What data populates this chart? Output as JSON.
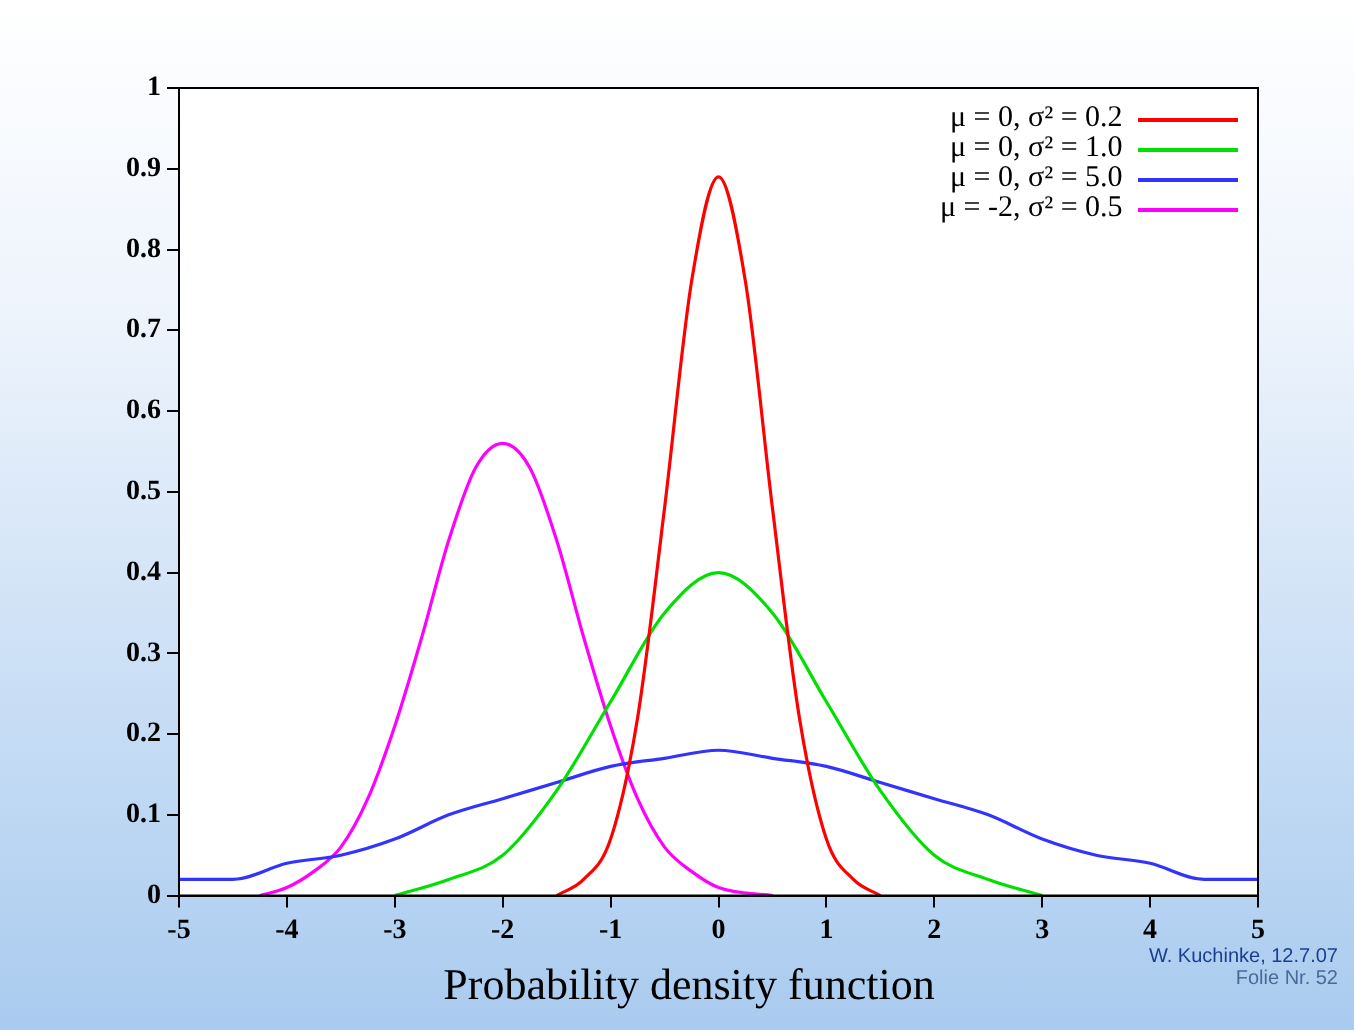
{
  "chart_data": {
    "type": "line",
    "title": "Probability density function",
    "xlim": [
      -5,
      5
    ],
    "xticks": [
      -5,
      -4,
      -3,
      -2,
      -1,
      0,
      1,
      2,
      3,
      4,
      5
    ],
    "ylim": [
      0,
      1
    ],
    "yticks": [
      0,
      0.1,
      0.2,
      0.3,
      0.4,
      0.5,
      0.6,
      0.7,
      0.8,
      0.9,
      1
    ],
    "legend": "top right",
    "marker": "none",
    "line_style": "solid",
    "series": [
      {
        "name": "μ = 0, σ² = 0.2",
        "color": "#ff0000",
        "x": [
          -1.5,
          -1.25,
          -1,
          -0.75,
          -0.5,
          -0.25,
          0,
          0.25,
          0.5,
          0.75,
          1,
          1.25,
          1.5
        ],
        "values": [
          0,
          0.02,
          0.07,
          0.22,
          0.48,
          0.76,
          0.89,
          0.76,
          0.48,
          0.22,
          0.07,
          0.02,
          0
        ]
      },
      {
        "name": "μ = 0, σ² = 1.0",
        "color": "#00e000",
        "x": [
          -3,
          -2.5,
          -2,
          -1.5,
          -1,
          -0.5,
          0,
          0.5,
          1,
          1.5,
          2,
          2.5,
          3
        ],
        "values": [
          0,
          0.02,
          0.05,
          0.13,
          0.24,
          0.35,
          0.4,
          0.35,
          0.24,
          0.13,
          0.05,
          0.02,
          0
        ]
      },
      {
        "name": "μ = 0, σ² = 5.0",
        "color": "#3333ff",
        "x": [
          -5,
          -4.5,
          -4,
          -3.5,
          -3,
          -2.5,
          -2,
          -1.5,
          -1,
          -0.5,
          0,
          0.5,
          1,
          1.5,
          2,
          2.5,
          3,
          3.5,
          4,
          4.5,
          5
        ],
        "values": [
          0.02,
          0.02,
          0.04,
          0.05,
          0.07,
          0.1,
          0.12,
          0.14,
          0.16,
          0.17,
          0.18,
          0.17,
          0.16,
          0.14,
          0.12,
          0.1,
          0.07,
          0.05,
          0.04,
          0.02,
          0.02
        ]
      },
      {
        "name": "μ = -2, σ² = 0.5",
        "color": "#ff00ff",
        "x": [
          -4.25,
          -4,
          -3.75,
          -3.5,
          -3.25,
          -3,
          -2.75,
          -2.5,
          -2.25,
          -2,
          -1.75,
          -1.5,
          -1.25,
          -1,
          -0.75,
          -0.5,
          -0.25,
          0,
          0.5
        ],
        "values": [
          0,
          0.01,
          0.03,
          0.06,
          0.12,
          0.21,
          0.32,
          0.44,
          0.53,
          0.56,
          0.53,
          0.44,
          0.32,
          0.21,
          0.12,
          0.06,
          0.03,
          0.01,
          0
        ]
      }
    ],
    "annotations": [
      "W. Kuchinke, 12.7.07",
      "Folie Nr. 52"
    ]
  }
}
